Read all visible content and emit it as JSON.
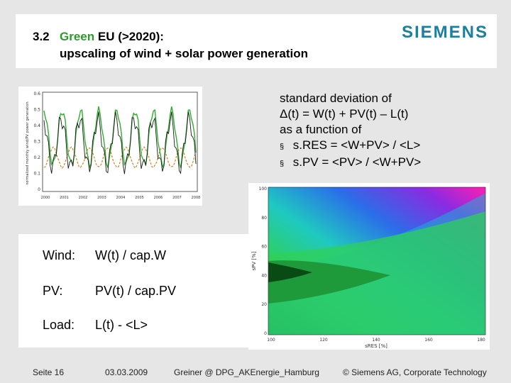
{
  "header": {
    "number": "3.2",
    "title_green": "Green",
    "title_rest": "EU (>2020):",
    "title_line2": "upscaling of wind + solar power generation",
    "logo": "SIEMENS",
    "logo_color": "#1a7fa0",
    "green_color": "#2d9a2d"
  },
  "top_chart": {
    "ylabel": "normalized monthly wind/PV power generation",
    "yticks": [
      "0.6",
      "0.5",
      "0.4",
      "0.3",
      "0.2",
      "0.1",
      "0"
    ],
    "xticks": [
      "2000",
      "2001",
      "2002",
      "2003",
      "2004",
      "2005",
      "2006",
      "2007",
      "2008"
    ],
    "series_colors": [
      "#1a1a1a",
      "#2fae2f",
      "#d4821a"
    ]
  },
  "info": {
    "line1": "standard deviation of",
    "line2": "Δ(t) = W(t) + PV(t) – L(t)",
    "line3": "as a function of",
    "bullet1": "s.RES = <W+PV> / <L>",
    "bullet2": "s.PV   = <PV> / <W+PV>",
    "bullet_glyph": "§"
  },
  "legend": {
    "wind_key": "Wind:",
    "wind_val": "W(t) / cap.W",
    "pv_key": "PV:",
    "pv_val": "PV(t) / cap.PV",
    "load_key": "Load:",
    "load_val": "L(t) - <L>"
  },
  "contour_chart": {
    "ylabel": "sPV [%]",
    "xlabel": "sRES [%]",
    "yticks": [
      "100",
      "80",
      "60",
      "40",
      "20",
      "0"
    ],
    "xticks": [
      "100",
      "120",
      "140",
      "160",
      "180"
    ]
  },
  "footer": {
    "page": "Seite 16",
    "date": "03.03.2009",
    "author": "Greiner @ DPG_AKEnergie_Hamburg",
    "copyright": "© Siemens AG, Corporate Technology"
  }
}
